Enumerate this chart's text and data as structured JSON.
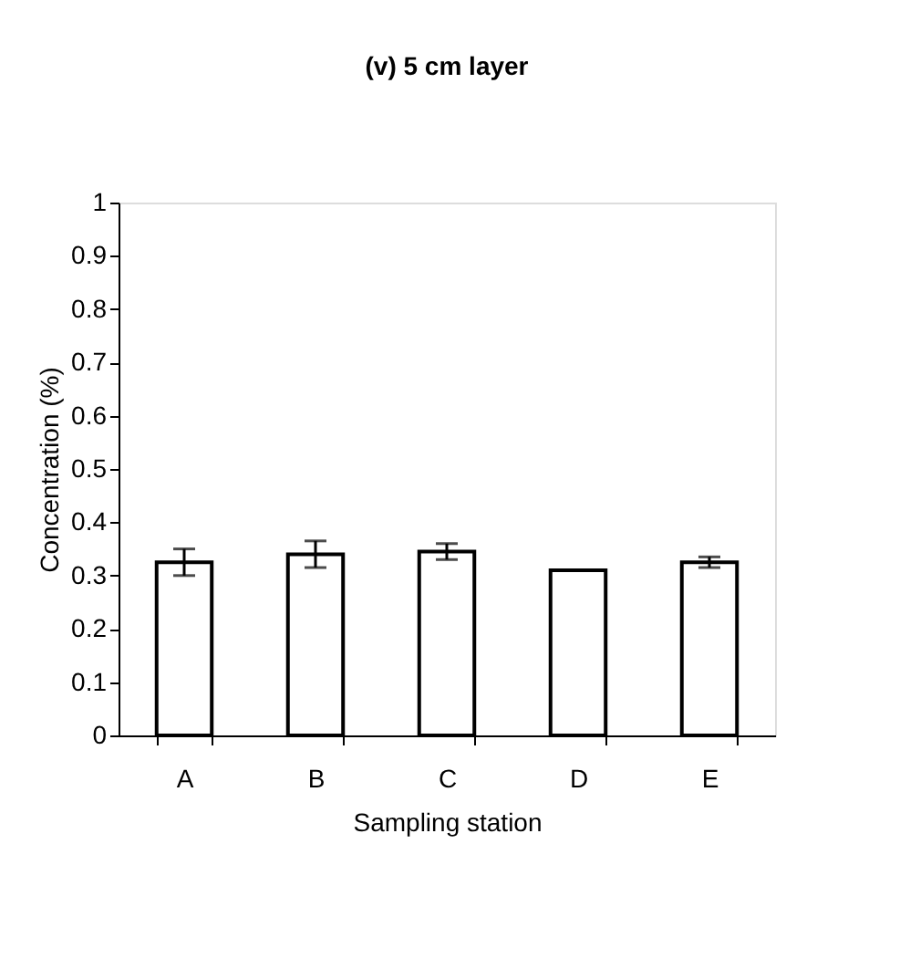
{
  "chart_data": {
    "type": "bar",
    "title": "(v) 5 cm layer",
    "xlabel": "Sampling station",
    "ylabel": "Concentration (%)",
    "categories": [
      "A",
      "B",
      "C",
      "D",
      "E"
    ],
    "values": [
      0.325,
      0.34,
      0.345,
      0.31,
      0.325
    ],
    "errors": [
      0.025,
      0.025,
      0.015,
      null,
      0.01
    ],
    "color": "#ffffff",
    "ylim": [
      0,
      1
    ],
    "yticks": [
      0,
      0.1,
      0.2,
      0.3,
      0.4,
      0.5,
      0.6,
      0.7,
      0.8,
      0.9,
      1
    ],
    "grid": false
  }
}
